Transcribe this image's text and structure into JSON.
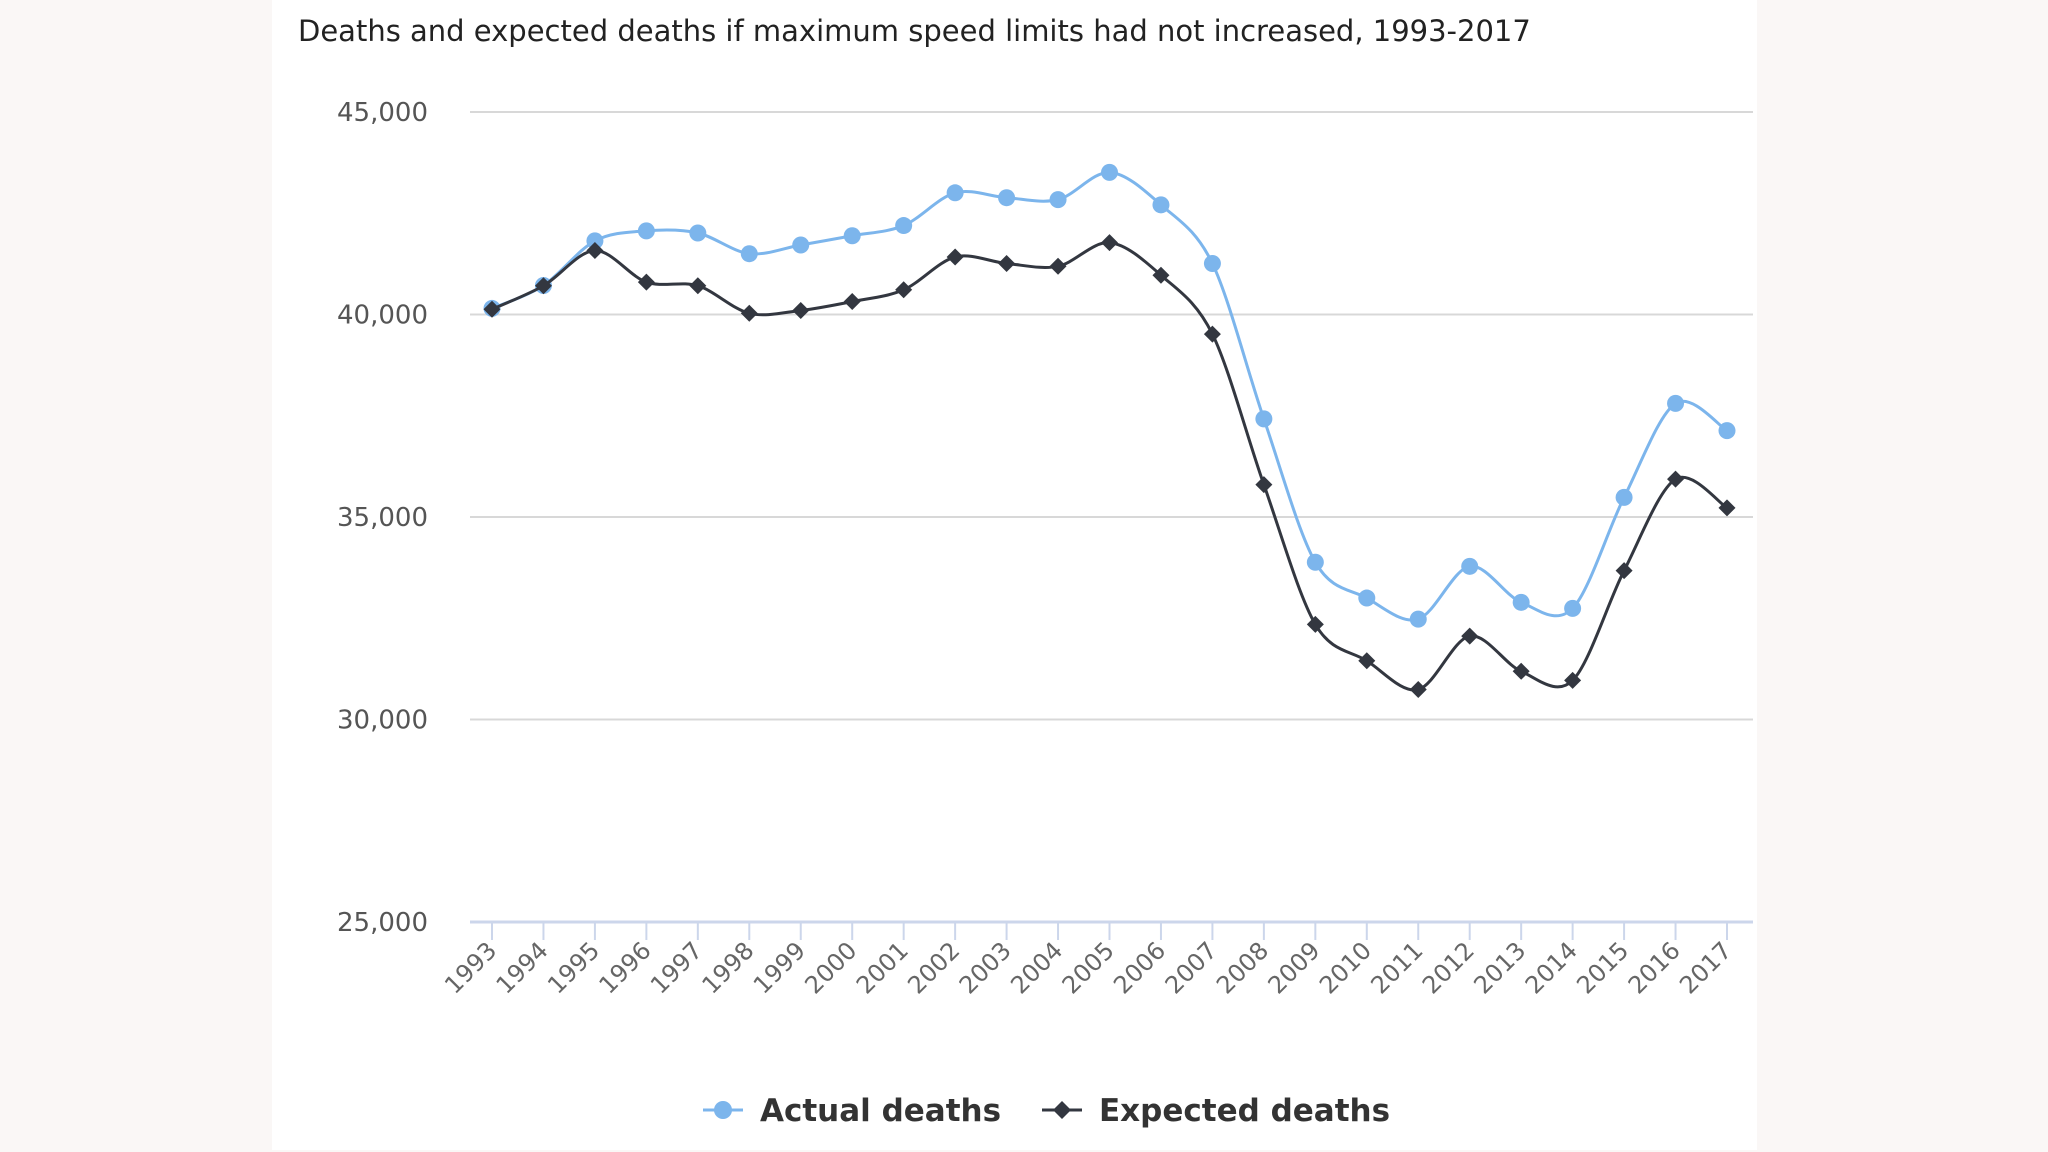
{
  "chart_data": {
    "type": "line",
    "title": "Deaths and expected deaths if maximum speed limits had not increased, 1993-2017",
    "xlabel": "",
    "ylabel": "",
    "ylim": [
      25000,
      45000
    ],
    "yticks": [
      "25,000",
      "30,000",
      "35,000",
      "40,000",
      "45,000"
    ],
    "ytick_values": [
      25000,
      30000,
      35000,
      40000,
      45000
    ],
    "grid": true,
    "legend": "bottom",
    "categories": [
      "1993",
      "1994",
      "1995",
      "1996",
      "1997",
      "1998",
      "1999",
      "2000",
      "2001",
      "2002",
      "2003",
      "2004",
      "2005",
      "2006",
      "2007",
      "2008",
      "2009",
      "2010",
      "2011",
      "2012",
      "2013",
      "2014",
      "2015",
      "2016",
      "2017"
    ],
    "series": [
      {
        "name": "Actual deaths",
        "color": "#7cb5ec",
        "marker": "circle",
        "values": [
          40150,
          40716,
          41817,
          42065,
          42013,
          41501,
          41717,
          41945,
          42196,
          43005,
          42884,
          42836,
          43510,
          42708,
          41259,
          37423,
          33883,
          32999,
          32479,
          33782,
          32893,
          32744,
          35485,
          37806,
          37133
        ]
      },
      {
        "name": "Expected deaths",
        "color": "#333740",
        "marker": "diamond",
        "values": [
          40130,
          40710,
          41580,
          40800,
          40710,
          40030,
          40100,
          40320,
          40610,
          41420,
          41260,
          41190,
          41775,
          40970,
          39515,
          35800,
          32350,
          31450,
          30740,
          32060,
          31190,
          30965,
          33675,
          35935,
          35225
        ]
      }
    ]
  }
}
